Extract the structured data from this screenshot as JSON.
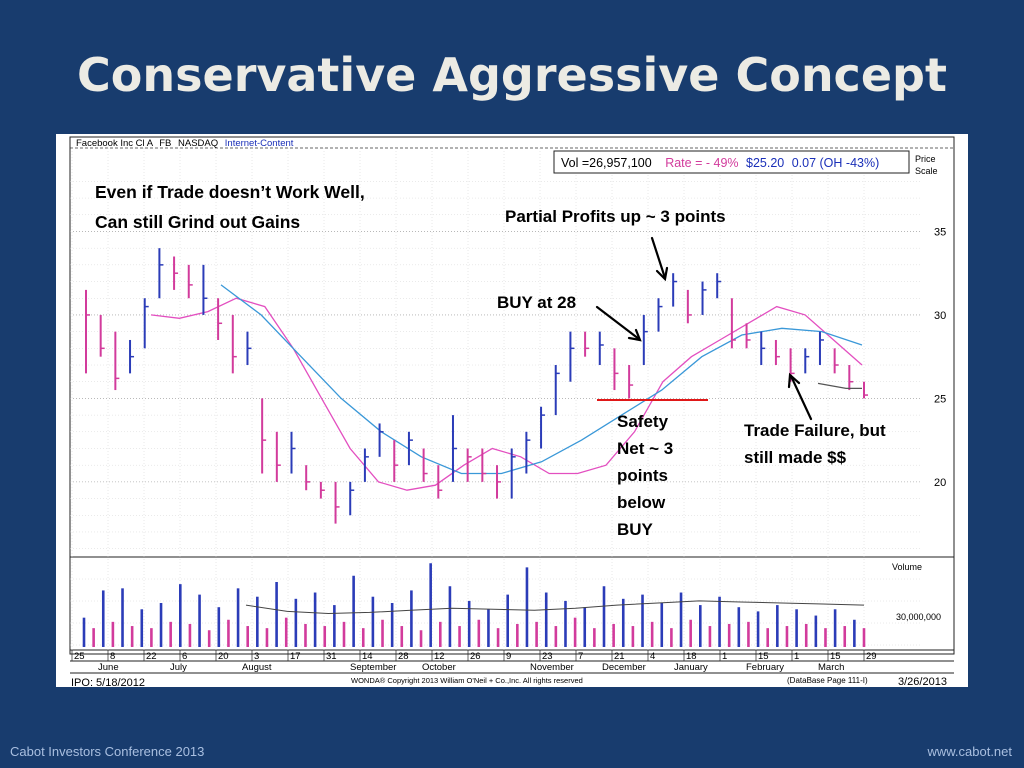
{
  "slide": {
    "title": "Conservative Aggressive Concept",
    "footer_left": "Cabot Investors Conference 2013",
    "footer_right": "www.cabot.net"
  },
  "chart_header": {
    "company": "Facebook Inc Cl A",
    "symbol": "FB",
    "exchange": "NASDAQ",
    "industry": "Internet-Content",
    "volume_text": "Vol =26,957,100",
    "rate_text": "Rate = - 49%",
    "price_text": "$25.20",
    "change_text": "0.07 (OH -43%)",
    "price_scale_line1": "Price",
    "price_scale_line2": "Scale",
    "volume_label": "Volume",
    "volume_tick": "30,000,000"
  },
  "chart_footer": {
    "ipo": "IPO: 5/18/2012",
    "copyright": "WONDA® Copyright 2013 William O'Neil + Co.,Inc. All rights reserved",
    "database": "(DataBase Page 111-I)",
    "date": "3/26/2013"
  },
  "annotations": {
    "grind_line1": "Even if Trade doesn’t Work Well,",
    "grind_line2": "Can still Grind out Gains",
    "partial": "Partial Profits up ~ 3 points",
    "buy": "BUY at 28",
    "safety": [
      "Safety",
      "Net ~ 3",
      "points",
      "below",
      "BUY"
    ],
    "failure_line1": "Trade Failure, but",
    "failure_line2": "still made $$"
  },
  "colors": {
    "up_bar": "#2b3cb8",
    "down_bar": "#d23b9c",
    "ma_fast": "#e34fc0",
    "ma_slow": "#3a98d8",
    "safety_line": "#e01818"
  },
  "chart_data": {
    "type": "bar",
    "price_axis": {
      "ticks": [
        20,
        25,
        30,
        35
      ],
      "ylim": [
        15.5,
        40
      ]
    },
    "day_ticks": [
      "25",
      "8",
      "22",
      "6",
      "20",
      "3",
      "17",
      "31",
      "14",
      "28",
      "12",
      "26",
      "9",
      "23",
      "7",
      "21",
      "4",
      "18",
      "1",
      "15",
      "1",
      "15",
      "29"
    ],
    "month_labels": [
      "June",
      "July",
      "August",
      "September",
      "October",
      "November",
      "December",
      "January",
      "February",
      "March"
    ],
    "price_bars": [
      {
        "low": 26.5,
        "high": 31.5,
        "close": 30,
        "up": false
      },
      {
        "low": 27.5,
        "high": 30,
        "close": 28,
        "up": false
      },
      {
        "low": 25.5,
        "high": 29,
        "close": 26.2,
        "up": false
      },
      {
        "low": 26.5,
        "high": 28.5,
        "close": 27.5,
        "up": true
      },
      {
        "low": 28,
        "high": 31,
        "close": 30.5,
        "up": true
      },
      {
        "low": 31,
        "high": 34,
        "close": 33,
        "up": true
      },
      {
        "low": 31.5,
        "high": 33.5,
        "close": 32.5,
        "up": false
      },
      {
        "low": 31,
        "high": 33,
        "close": 31.8,
        "up": false
      },
      {
        "low": 30,
        "high": 33,
        "close": 31,
        "up": true
      },
      {
        "low": 28.5,
        "high": 31,
        "close": 29.5,
        "up": false
      },
      {
        "low": 26.5,
        "high": 30,
        "close": 27.5,
        "up": false
      },
      {
        "low": 27,
        "high": 29,
        "close": 28,
        "up": true
      },
      {
        "low": 20.5,
        "high": 25,
        "close": 22.5,
        "up": false
      },
      {
        "low": 20,
        "high": 23,
        "close": 21,
        "up": false
      },
      {
        "low": 20.5,
        "high": 23,
        "close": 22,
        "up": true
      },
      {
        "low": 19.5,
        "high": 21,
        "close": 20,
        "up": false
      },
      {
        "low": 19,
        "high": 20,
        "close": 19.5,
        "up": false
      },
      {
        "low": 17.5,
        "high": 20,
        "close": 18.5,
        "up": false
      },
      {
        "low": 18,
        "high": 20,
        "close": 19.5,
        "up": true
      },
      {
        "low": 20,
        "high": 22,
        "close": 21.5,
        "up": true
      },
      {
        "low": 21.5,
        "high": 23.5,
        "close": 23,
        "up": true
      },
      {
        "low": 20,
        "high": 22.5,
        "close": 21,
        "up": false
      },
      {
        "low": 21,
        "high": 23,
        "close": 22.5,
        "up": true
      },
      {
        "low": 20,
        "high": 22,
        "close": 20.5,
        "up": false
      },
      {
        "low": 19,
        "high": 21,
        "close": 19.5,
        "up": false
      },
      {
        "low": 20,
        "high": 24,
        "close": 22,
        "up": true
      },
      {
        "low": 20,
        "high": 22,
        "close": 21.5,
        "up": false
      },
      {
        "low": 20,
        "high": 22,
        "close": 20.5,
        "up": false
      },
      {
        "low": 19,
        "high": 21,
        "close": 20,
        "up": false
      },
      {
        "low": 19,
        "high": 22,
        "close": 21.5,
        "up": true
      },
      {
        "low": 20.5,
        "high": 23,
        "close": 22.5,
        "up": true
      },
      {
        "low": 22,
        "high": 24.5,
        "close": 24,
        "up": true
      },
      {
        "low": 24,
        "high": 27,
        "close": 26.5,
        "up": true
      },
      {
        "low": 26,
        "high": 29,
        "close": 28,
        "up": true
      },
      {
        "low": 27.5,
        "high": 29,
        "close": 28,
        "up": false
      },
      {
        "low": 27,
        "high": 29,
        "close": 28.2,
        "up": true
      },
      {
        "low": 25.5,
        "high": 28,
        "close": 26.5,
        "up": false
      },
      {
        "low": 25,
        "high": 27,
        "close": 25.8,
        "up": false
      },
      {
        "low": 27,
        "high": 30,
        "close": 29,
        "up": true
      },
      {
        "low": 29,
        "high": 31,
        "close": 30.5,
        "up": true
      },
      {
        "low": 30.5,
        "high": 32.5,
        "close": 32,
        "up": true
      },
      {
        "low": 29.5,
        "high": 31.5,
        "close": 30,
        "up": false
      },
      {
        "low": 30,
        "high": 32,
        "close": 31.5,
        "up": true
      },
      {
        "low": 31,
        "high": 32.5,
        "close": 32,
        "up": true
      },
      {
        "low": 28,
        "high": 31,
        "close": 28.5,
        "up": false
      },
      {
        "low": 28,
        "high": 29.5,
        "close": 28.5,
        "up": false
      },
      {
        "low": 27,
        "high": 29,
        "close": 28,
        "up": true
      },
      {
        "low": 27,
        "high": 28.5,
        "close": 27.5,
        "up": false
      },
      {
        "low": 26,
        "high": 28,
        "close": 26.5,
        "up": false
      },
      {
        "low": 26.5,
        "high": 28,
        "close": 27.5,
        "up": true
      },
      {
        "low": 27,
        "high": 29,
        "close": 28.5,
        "up": true
      },
      {
        "low": 26.5,
        "high": 28,
        "close": 27,
        "up": false
      },
      {
        "low": 25.5,
        "high": 27,
        "close": 26,
        "up": false
      },
      {
        "low": 25,
        "high": 26,
        "close": 25.2,
        "up": false
      }
    ],
    "moving_average_fast": [
      30,
      29.8,
      30.2,
      31,
      30.5,
      28,
      25,
      22,
      20,
      19.5,
      19.8,
      21,
      22,
      21.5,
      20.5,
      20.5,
      21,
      23,
      26,
      27.5,
      28.5,
      29.5,
      30.5,
      30,
      28.5,
      27
    ],
    "moving_average_slow": [
      31.8,
      30,
      27.5,
      25,
      23,
      21.5,
      20.5,
      20.5,
      21.2,
      22.5,
      24,
      25.5,
      27.5,
      28.8,
      29.2,
      29,
      28.2
    ],
    "volume_bars": [
      14,
      9,
      27,
      12,
      28,
      10,
      18,
      9,
      21,
      12,
      30,
      11,
      25,
      8,
      19,
      13,
      28,
      10,
      24,
      9,
      31,
      14,
      23,
      11,
      26,
      10,
      20,
      12,
      34,
      9,
      24,
      13,
      21,
      10,
      27,
      8,
      40,
      12,
      29,
      10,
      22,
      13,
      18,
      9,
      25,
      11,
      38,
      12,
      26,
      10,
      22,
      14,
      19,
      9,
      29,
      11,
      23,
      10,
      25,
      12,
      21,
      9,
      26,
      13,
      20,
      10,
      24,
      11,
      19,
      12,
      17,
      9,
      20,
      10,
      18,
      11,
      15,
      9,
      18,
      10,
      13,
      9
    ],
    "volume_average": [
      20,
      17,
      16,
      16.5,
      17.5,
      18.5,
      18,
      17.5,
      18.5,
      20,
      21,
      22,
      21.5,
      21,
      20.5,
      20
    ]
  }
}
